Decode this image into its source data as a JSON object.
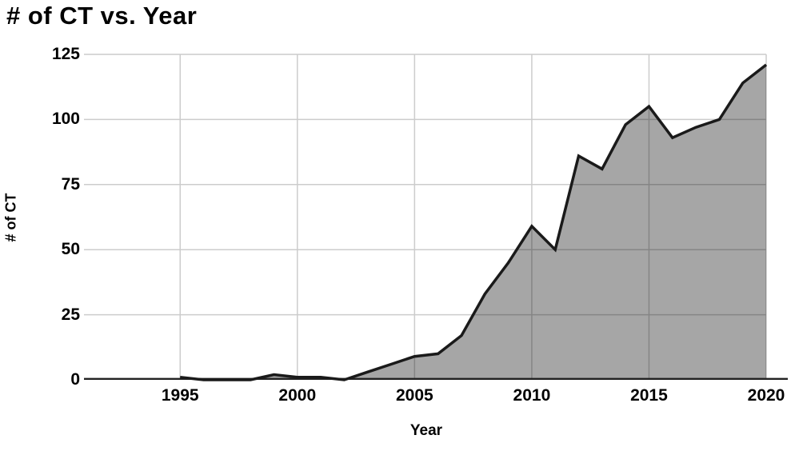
{
  "title": "# of CT vs. Year",
  "chart_data": {
    "type": "area",
    "title": "# of CT vs. Year",
    "xlabel": "Year",
    "ylabel": "# of CT",
    "x": [
      1995,
      1996,
      1997,
      1998,
      1999,
      2000,
      2001,
      2002,
      2003,
      2004,
      2005,
      2006,
      2007,
      2008,
      2009,
      2010,
      2011,
      2012,
      2013,
      2014,
      2015,
      2016,
      2017,
      2018,
      2019,
      2020
    ],
    "values": [
      1,
      0,
      0,
      0,
      2,
      1,
      1,
      0,
      3,
      6,
      9,
      10,
      17,
      33,
      45,
      59,
      50,
      86,
      81,
      98,
      105,
      93,
      97,
      100,
      114,
      121
    ],
    "x_ticks": [
      1995,
      2000,
      2005,
      2010,
      2015,
      2020
    ],
    "y_ticks": [
      0,
      25,
      50,
      75,
      100,
      125
    ],
    "xlim": [
      1991,
      2020
    ],
    "ylim": [
      0,
      125
    ],
    "grid": true,
    "legend": "none",
    "colors": {
      "area_fill": "rgba(0,0,0,0.35)",
      "line": "#1a1a1a",
      "gridline": "#cccccc",
      "axis": "#222222",
      "text": "#000000"
    }
  }
}
